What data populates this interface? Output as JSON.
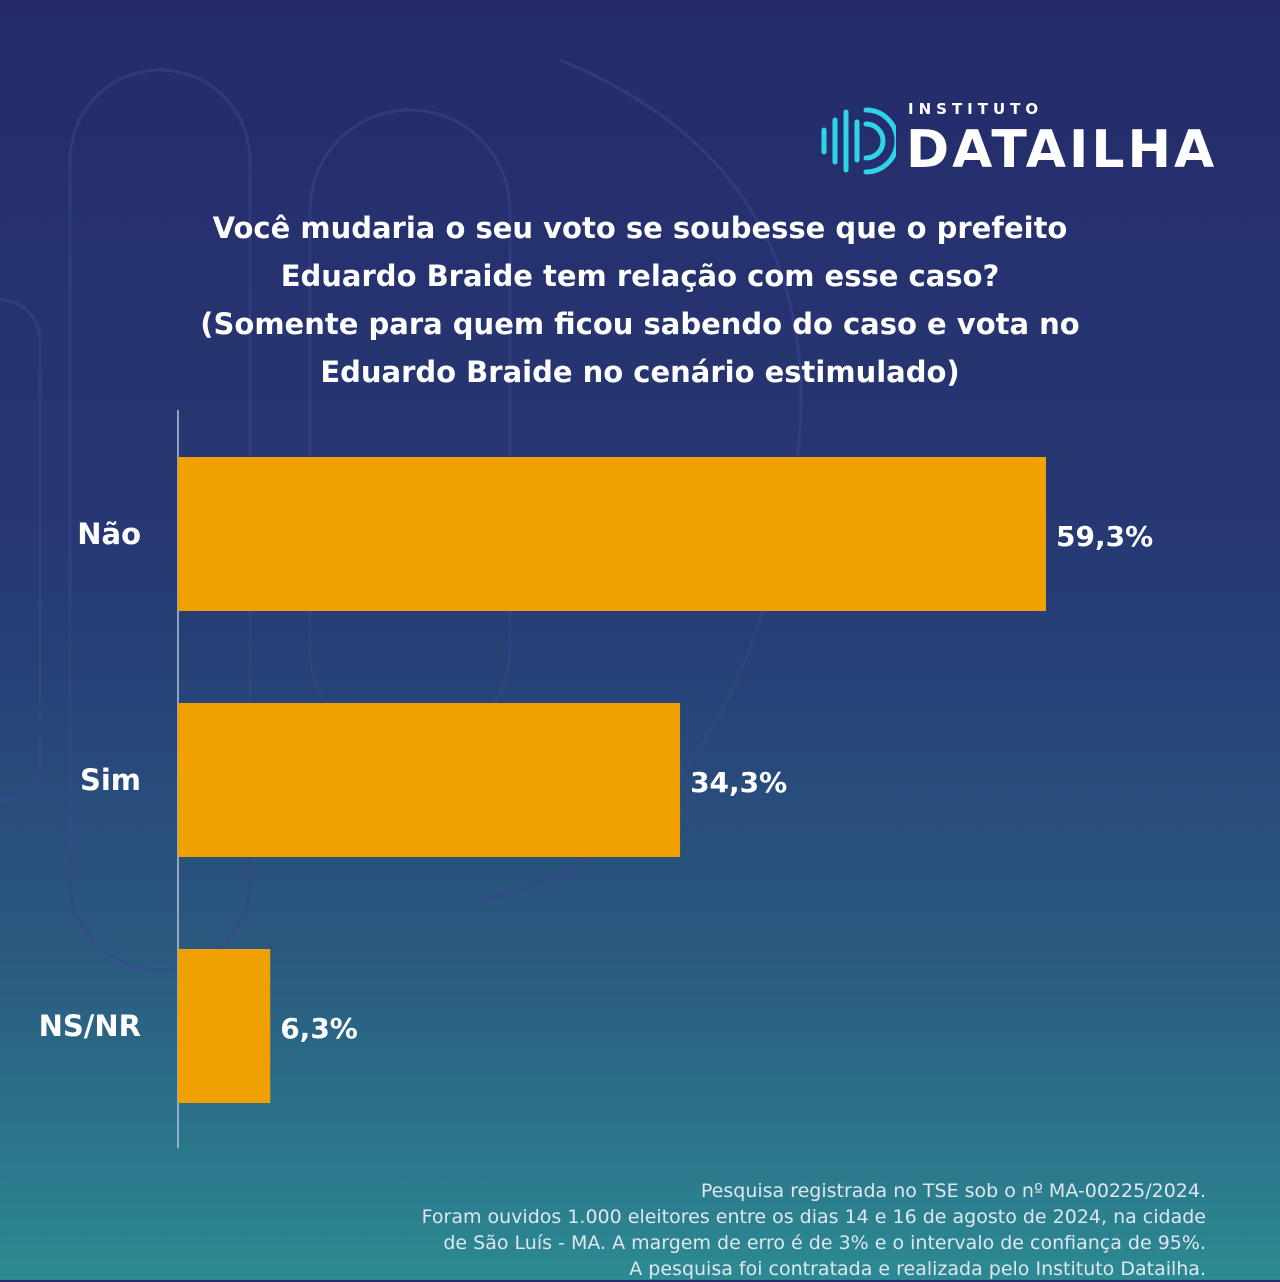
{
  "brand": {
    "top": "INSTITUTO",
    "name": "DATAILHA",
    "accent": "#2fd4e8"
  },
  "colors": {
    "bar": "#f0a000",
    "axis": "#b9c2d6"
  },
  "chart_data": {
    "type": "bar",
    "orientation": "horizontal",
    "title": "Você mudaria o seu voto se soubesse que o prefeito Eduardo Braide tem relação com esse caso? (Somente para quem ficou sabendo do caso e vota no Eduardo Braide no cenário estimulado)",
    "categories": [
      "Não",
      "Sim",
      "NS/NR"
    ],
    "values": [
      59.3,
      34.3,
      6.3
    ],
    "value_labels": [
      "59,3%",
      "34,3%",
      "6,3%"
    ],
    "unit": "%",
    "xlim": [
      0,
      59.3
    ],
    "grid": false,
    "legend": "none"
  },
  "title_lines": [
    "Você mudaria o seu voto se soubesse que o prefeito",
    "Eduardo Braide tem relação com esse caso?",
    "(Somente para quem ficou sabendo do caso e vota no",
    "Eduardo Braide no cenário estimulado)"
  ],
  "footnote": [
    "Pesquisa registrada no TSE sob o nº MA-00225/2024.",
    "Foram ouvidos 1.000 eleitores entre os dias 14 e 16 de agosto de 2024, na cidade",
    "de São Luís - MA. A margem de erro é de 3% e o intervalo de confiança de 95%.",
    "A pesquisa foi contratada e realizada pelo Instituto Datailha."
  ]
}
